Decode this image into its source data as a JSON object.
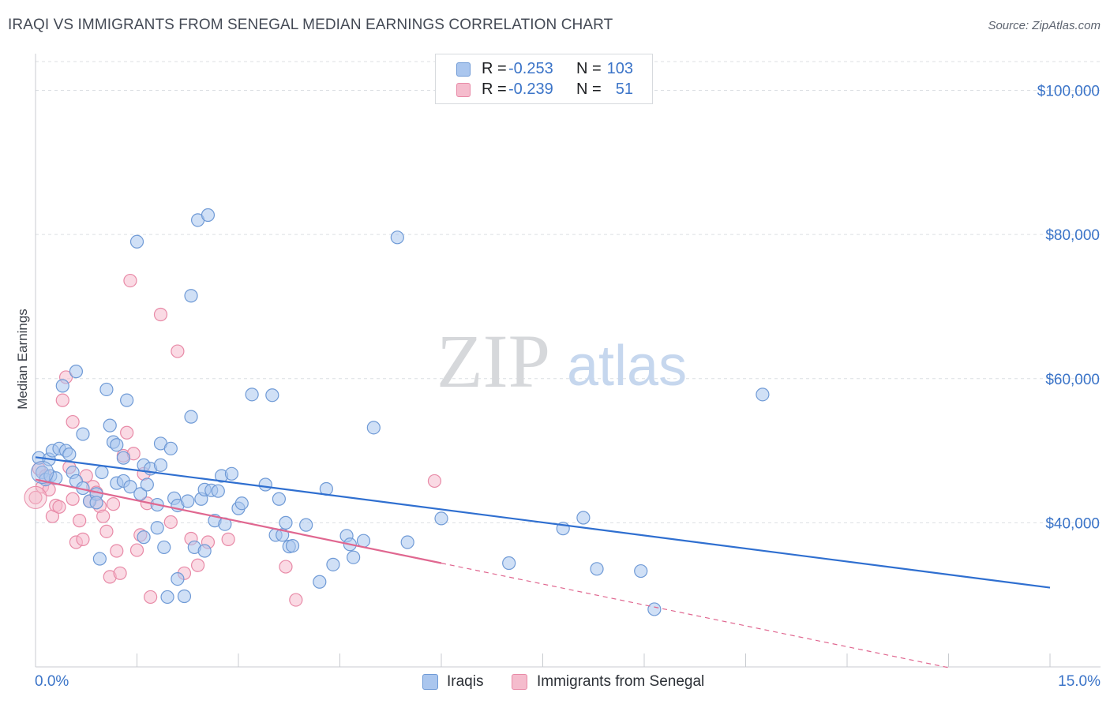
{
  "title": "IRAQI VS IMMIGRANTS FROM SENEGAL MEDIAN EARNINGS CORRELATION CHART",
  "source": "Source: ZipAtlas.com",
  "watermark": {
    "part1": "ZIP",
    "part2": "atlas"
  },
  "legend": {
    "rows": [
      {
        "r_label": "R =",
        "r_value": "-0.253",
        "n_label": "N =",
        "n_value": "103"
      },
      {
        "r_label": "R =",
        "r_value": "-0.239",
        "n_label": "N =",
        "n_value": "51"
      }
    ]
  },
  "bottom_legend": {
    "series1": "Iraqis",
    "series2": "Immigrants from Senegal"
  },
  "colors": {
    "series1_fill": "#aac6ee",
    "series1_stroke": "#6f9ad6",
    "series1_line": "#2f6fd0",
    "series2_fill": "#f5bccd",
    "series2_stroke": "#e88aa7",
    "series2_line": "#e06790",
    "tick_text": "#3b74c8",
    "grid": "#dcdfe3"
  },
  "chart_data": {
    "type": "scatter",
    "xlabel": "",
    "ylabel": "Median Earnings",
    "xlim": [
      0,
      15
    ],
    "ylim": [
      20000,
      104000
    ],
    "x_tick_labels": [
      "0.0%",
      "15.0%"
    ],
    "y_ticks": [
      {
        "value": 40000,
        "label": "$40,000"
      },
      {
        "value": 60000,
        "label": "$60,000"
      },
      {
        "value": 80000,
        "label": "$80,000"
      },
      {
        "value": 100000,
        "label": "$100,000"
      }
    ],
    "grid": true,
    "legend_position": "top-center",
    "series": [
      {
        "name": "Iraqis",
        "r": -0.253,
        "n": 103,
        "trend": {
          "x0": 0,
          "y0": 49100,
          "x1": 15,
          "y1": 31000,
          "dashed_from": 15
        },
        "points": [
          [
            0.05,
            49000
          ],
          [
            0.1,
            47000
          ],
          [
            0.15,
            46000
          ],
          [
            0.2,
            48800
          ],
          [
            0.22,
            46500
          ],
          [
            0.25,
            50000
          ],
          [
            0.3,
            46200
          ],
          [
            0.35,
            50300
          ],
          [
            0.4,
            59000
          ],
          [
            0.45,
            50000
          ],
          [
            0.5,
            49500
          ],
          [
            0.55,
            47000
          ],
          [
            0.6,
            61000
          ],
          [
            0.6,
            45800
          ],
          [
            0.7,
            52300
          ],
          [
            0.7,
            44800
          ],
          [
            0.8,
            43000
          ],
          [
            0.9,
            44000
          ],
          [
            0.9,
            42800
          ],
          [
            0.95,
            35000
          ],
          [
            0.98,
            47000
          ],
          [
            1.05,
            58500
          ],
          [
            1.1,
            53500
          ],
          [
            1.15,
            51200
          ],
          [
            1.2,
            50800
          ],
          [
            1.2,
            45500
          ],
          [
            1.3,
            49000
          ],
          [
            1.3,
            45800
          ],
          [
            1.35,
            57000
          ],
          [
            1.4,
            45000
          ],
          [
            1.5,
            79000
          ],
          [
            1.55,
            44000
          ],
          [
            1.6,
            48000
          ],
          [
            1.6,
            38000
          ],
          [
            1.65,
            45300
          ],
          [
            1.7,
            47500
          ],
          [
            1.8,
            39300
          ],
          [
            1.8,
            42500
          ],
          [
            1.85,
            48000
          ],
          [
            1.85,
            51000
          ],
          [
            1.9,
            36600
          ],
          [
            1.95,
            29700
          ],
          [
            2.0,
            50300
          ],
          [
            2.05,
            43400
          ],
          [
            2.1,
            32200
          ],
          [
            2.1,
            42400
          ],
          [
            2.2,
            29800
          ],
          [
            2.25,
            43000
          ],
          [
            2.3,
            54700
          ],
          [
            2.3,
            71500
          ],
          [
            2.35,
            36600
          ],
          [
            2.4,
            82000
          ],
          [
            2.45,
            43300
          ],
          [
            2.5,
            44600
          ],
          [
            2.5,
            36100
          ],
          [
            2.55,
            82700
          ],
          [
            2.6,
            44500
          ],
          [
            2.65,
            40300
          ],
          [
            2.7,
            44400
          ],
          [
            2.75,
            46500
          ],
          [
            2.8,
            39800
          ],
          [
            2.9,
            46800
          ],
          [
            3.0,
            42000
          ],
          [
            3.05,
            42700
          ],
          [
            3.2,
            57800
          ],
          [
            3.4,
            45300
          ],
          [
            3.5,
            57700
          ],
          [
            3.55,
            38300
          ],
          [
            3.6,
            43300
          ],
          [
            3.65,
            38300
          ],
          [
            3.7,
            40000
          ],
          [
            3.75,
            36700
          ],
          [
            3.8,
            36800
          ],
          [
            4.0,
            39700
          ],
          [
            4.2,
            31800
          ],
          [
            4.3,
            44700
          ],
          [
            4.4,
            34200
          ],
          [
            4.6,
            38200
          ],
          [
            4.65,
            37000
          ],
          [
            4.7,
            35200
          ],
          [
            4.85,
            37500
          ],
          [
            5.0,
            53200
          ],
          [
            5.35,
            79600
          ],
          [
            5.5,
            37300
          ],
          [
            6.0,
            40600
          ],
          [
            7.0,
            34400
          ],
          [
            7.8,
            39200
          ],
          [
            8.1,
            40700
          ],
          [
            8.3,
            33600
          ],
          [
            8.95,
            33300
          ],
          [
            9.15,
            28000
          ],
          [
            10.75,
            57800
          ]
        ]
      },
      {
        "name": "Immigrants from Senegal",
        "r": -0.239,
        "n": 51,
        "trend": {
          "x0": 0,
          "y0": 46000,
          "x1": 6,
          "y1": 34400,
          "dashed_to_x": 13.5
        },
        "points": [
          [
            0.0,
            43500
          ],
          [
            0.05,
            47500
          ],
          [
            0.1,
            45000
          ],
          [
            0.15,
            46500
          ],
          [
            0.2,
            44600
          ],
          [
            0.25,
            40900
          ],
          [
            0.3,
            42400
          ],
          [
            0.35,
            42200
          ],
          [
            0.4,
            57000
          ],
          [
            0.45,
            60200
          ],
          [
            0.5,
            47700
          ],
          [
            0.55,
            54000
          ],
          [
            0.55,
            43300
          ],
          [
            0.6,
            37300
          ],
          [
            0.65,
            40300
          ],
          [
            0.7,
            37700
          ],
          [
            0.75,
            46500
          ],
          [
            0.8,
            43000
          ],
          [
            0.85,
            45000
          ],
          [
            0.9,
            44200
          ],
          [
            0.95,
            42300
          ],
          [
            1.0,
            40900
          ],
          [
            1.05,
            38800
          ],
          [
            1.1,
            32500
          ],
          [
            1.15,
            42600
          ],
          [
            1.2,
            36100
          ],
          [
            1.25,
            33000
          ],
          [
            1.3,
            49300
          ],
          [
            1.35,
            52500
          ],
          [
            1.4,
            73600
          ],
          [
            1.45,
            49600
          ],
          [
            1.5,
            36200
          ],
          [
            1.55,
            38300
          ],
          [
            1.6,
            46800
          ],
          [
            1.65,
            42700
          ],
          [
            1.7,
            29700
          ],
          [
            1.85,
            68900
          ],
          [
            2.0,
            40100
          ],
          [
            2.1,
            63800
          ],
          [
            2.2,
            33000
          ],
          [
            2.3,
            37800
          ],
          [
            2.4,
            34100
          ],
          [
            2.55,
            37300
          ],
          [
            2.85,
            37700
          ],
          [
            3.7,
            33900
          ],
          [
            3.85,
            29300
          ],
          [
            5.9,
            45800
          ]
        ]
      }
    ]
  }
}
